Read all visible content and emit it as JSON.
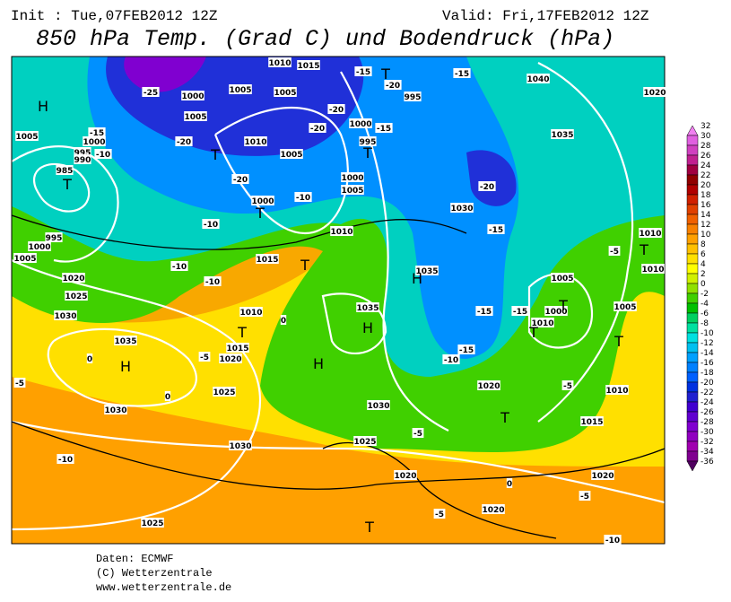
{
  "header": {
    "init": "Init : Tue,07FEB2012 12Z",
    "valid": "Valid: Fri,17FEB2012 12Z",
    "title": "850 hPa Temp. (Grad C) und Bodendruck (hPa)"
  },
  "map_labels": [
    "H",
    "T",
    "985",
    "1005",
    "1000",
    "995",
    "990",
    "-10",
    "-15",
    "1000",
    "995",
    "1005",
    "-25",
    "1000",
    "1005",
    "1010",
    "1015",
    "1005",
    "1005",
    "-20",
    "T",
    "1010",
    "1005",
    "-20",
    "T",
    "1000",
    "-10",
    "-10",
    "-15",
    "T",
    "-20",
    "-15",
    "1040",
    "1020",
    "995",
    "-20",
    "1000",
    "-15",
    "-20",
    "995",
    "T",
    "1035",
    "1000",
    "1005",
    "-20",
    "1030",
    "-15",
    "1010",
    "1015",
    "-10",
    "-10",
    "T",
    "1020",
    "1025",
    "1030",
    "1035",
    "H",
    "0",
    "1010",
    "T",
    "1015",
    "1020",
    "-5",
    "0",
    "1025",
    "1030",
    "0",
    "1035",
    "H",
    "H",
    "1035",
    "H",
    "-15",
    "-15",
    "1005",
    "1000",
    "1010",
    "T",
    "T",
    "-15",
    "-10",
    "1020",
    "-5",
    "1010",
    "1005",
    "T",
    "-5",
    "1010",
    "T",
    "1010",
    "1030",
    "-5",
    "T",
    "1015",
    "1025",
    "1030",
    "-10",
    "-5",
    "1020",
    "0",
    "1020",
    "-5",
    "1020",
    "-5",
    "T",
    "1025",
    "-10"
  ],
  "colorbar": [
    {
      "value": 32,
      "color": "#f080f0"
    },
    {
      "value": 30,
      "color": "#e060e0"
    },
    {
      "value": 28,
      "color": "#d040c0"
    },
    {
      "value": 26,
      "color": "#c02090"
    },
    {
      "value": 24,
      "color": "#a00040"
    },
    {
      "value": 22,
      "color": "#900000"
    },
    {
      "value": 20,
      "color": "#b00000"
    },
    {
      "value": 18,
      "color": "#d02000"
    },
    {
      "value": 16,
      "color": "#e04000"
    },
    {
      "value": 14,
      "color": "#f06000"
    },
    {
      "value": 12,
      "color": "#f88000"
    },
    {
      "value": 10,
      "color": "#ffa000"
    },
    {
      "value": 8,
      "color": "#ffc000"
    },
    {
      "value": 6,
      "color": "#ffe000"
    },
    {
      "value": 4,
      "color": "#ffff00"
    },
    {
      "value": 2,
      "color": "#d0f000"
    },
    {
      "value": 0,
      "color": "#90e000"
    },
    {
      "value": -2,
      "color": "#40d000"
    },
    {
      "value": -4,
      "color": "#00c000"
    },
    {
      "value": -6,
      "color": "#00d060"
    },
    {
      "value": -8,
      "color": "#00e0a0"
    },
    {
      "value": -10,
      "color": "#00e0e0"
    },
    {
      "value": -12,
      "color": "#00c0f0"
    },
    {
      "value": -14,
      "color": "#00a0ff"
    },
    {
      "value": -16,
      "color": "#0080ff"
    },
    {
      "value": -18,
      "color": "#0060ff"
    },
    {
      "value": -20,
      "color": "#0030e0"
    },
    {
      "value": -22,
      "color": "#2020d0"
    },
    {
      "value": -24,
      "color": "#4000d0"
    },
    {
      "value": -26,
      "color": "#6000d0"
    },
    {
      "value": -28,
      "color": "#8000d0"
    },
    {
      "value": -30,
      "color": "#9000c0"
    },
    {
      "value": -32,
      "color": "#a000b0"
    },
    {
      "value": -34,
      "color": "#800090"
    },
    {
      "value": -36,
      "color": "#500060"
    }
  ],
  "footer": [
    "Daten: ECMWF",
    "(C) Wetterzentrale",
    "www.wetterzentrale.de"
  ]
}
